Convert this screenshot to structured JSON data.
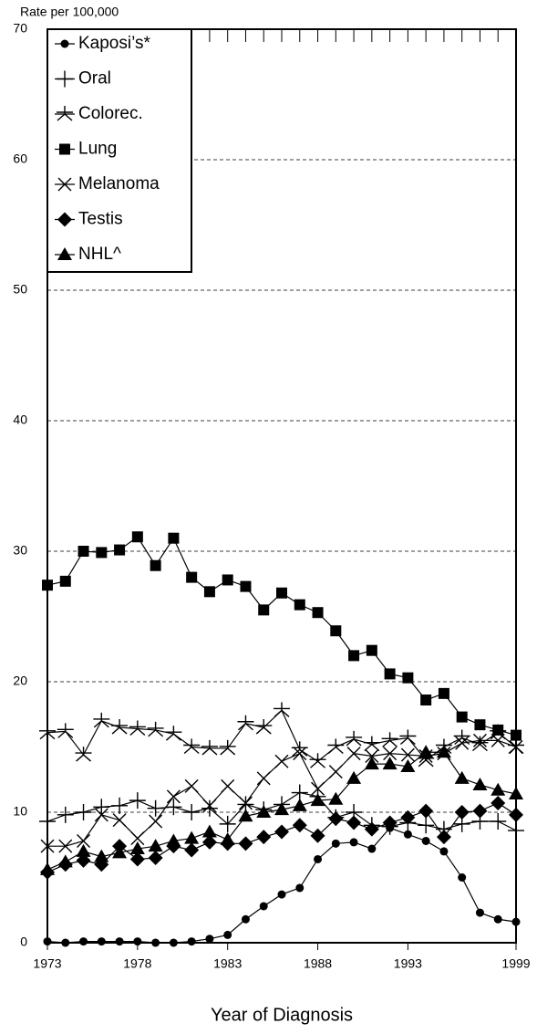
{
  "chart_data": {
    "type": "line",
    "title": "Rate per 100,000",
    "xlabel": "Year of Diagnosis",
    "x": [
      1973,
      1974,
      1975,
      1976,
      1977,
      1978,
      1979,
      1980,
      1981,
      1982,
      1983,
      1984,
      1985,
      1986,
      1987,
      1988,
      1989,
      1990,
      1991,
      1992,
      1993,
      1994,
      1995,
      1996,
      1997,
      1998,
      1999
    ],
    "xlim": [
      1973,
      1999
    ],
    "xticks": [
      1973,
      1978,
      1983,
      1988,
      1993,
      1999
    ],
    "ylim": [
      0,
      70
    ],
    "yticks": [
      0,
      10,
      20,
      30,
      40,
      50,
      60,
      70
    ],
    "grid": true,
    "legend": "upper left",
    "series": [
      {
        "name": "Kaposi’s*",
        "marker": "circle",
        "color": "#000000",
        "values": [
          0.1,
          0,
          0.1,
          0.1,
          0.1,
          0.1,
          0,
          0,
          0.1,
          0.3,
          0.6,
          1.8,
          2.8,
          3.7,
          4.2,
          6.4,
          7.6,
          7.7,
          7.2,
          8.8,
          8.3,
          7.8,
          7.0,
          5.0,
          2.3,
          1.8,
          1.6
        ]
      },
      {
        "name": "Oral",
        "marker": "plus",
        "color": "#000000",
        "values": [
          9.3,
          9.8,
          10.0,
          10.4,
          10.5,
          10.9,
          10.3,
          10.4,
          10.0,
          10.3,
          9.1,
          10.6,
          10.2,
          10.6,
          11.5,
          11.2,
          9.6,
          10.0,
          9.0,
          8.9,
          9.2,
          9.0,
          8.7,
          9.1,
          9.3,
          9.3,
          8.6
        ]
      },
      {
        "name": "Colorec.",
        "marker": "asterisk",
        "color": "#000000",
        "values": [
          16.1,
          16.2,
          14.4,
          17.0,
          16.5,
          16.4,
          16.3,
          16.0,
          15.0,
          14.9,
          14.9,
          16.8,
          16.5,
          17.8,
          14.8,
          13.9,
          15.0,
          15.6,
          15.2,
          15.5,
          15.7,
          14.0,
          15.0,
          15.7,
          15.2,
          16.1,
          15.0
        ]
      },
      {
        "name": "Lung",
        "marker": "square",
        "color": "#000000",
        "values": [
          27.4,
          27.7,
          30.0,
          29.9,
          30.1,
          31.1,
          28.9,
          31.0,
          28.0,
          26.9,
          27.8,
          27.3,
          25.5,
          26.8,
          25.9,
          25.3,
          23.9,
          22.0,
          22.4,
          20.6,
          20.3,
          18.6,
          19.1,
          17.3,
          16.7,
          16.3,
          15.9
        ]
      },
      {
        "name": "Melanoma",
        "marker": "cross",
        "color": "#000000",
        "values": [
          7.4,
          7.4,
          7.8,
          9.8,
          9.4,
          8.0,
          9.3,
          11.2,
          12.0,
          10.5,
          12.0,
          10.7,
          12.6,
          13.9,
          14.5,
          11.8,
          13.1,
          14.5,
          14.3,
          14.5,
          14.4,
          14.3,
          14.5,
          15.3,
          15.5,
          15.5,
          15.0
        ]
      },
      {
        "name": "Testis",
        "marker": "diamond",
        "color": "#000000",
        "values": [
          5.4,
          6.0,
          6.3,
          6.0,
          7.4,
          6.4,
          6.5,
          7.4,
          7.1,
          7.7,
          7.6,
          7.6,
          8.1,
          8.5,
          9.0,
          8.2,
          9.5,
          9.2,
          8.7,
          9.2,
          9.6,
          10.1,
          8.1,
          10.0,
          10.1,
          10.7,
          9.8
        ]
      },
      {
        "name": "NHL^",
        "marker": "triangle",
        "color": "#000000",
        "values": [
          5.6,
          6.2,
          7.0,
          6.6,
          6.9,
          7.2,
          7.4,
          7.8,
          8.0,
          8.5,
          7.9,
          9.7,
          10.0,
          10.2,
          10.5,
          10.9,
          11.0,
          12.6,
          13.7,
          13.7,
          13.5,
          14.6,
          14.6,
          12.6,
          12.1,
          11.7,
          11.4
        ]
      }
    ]
  }
}
